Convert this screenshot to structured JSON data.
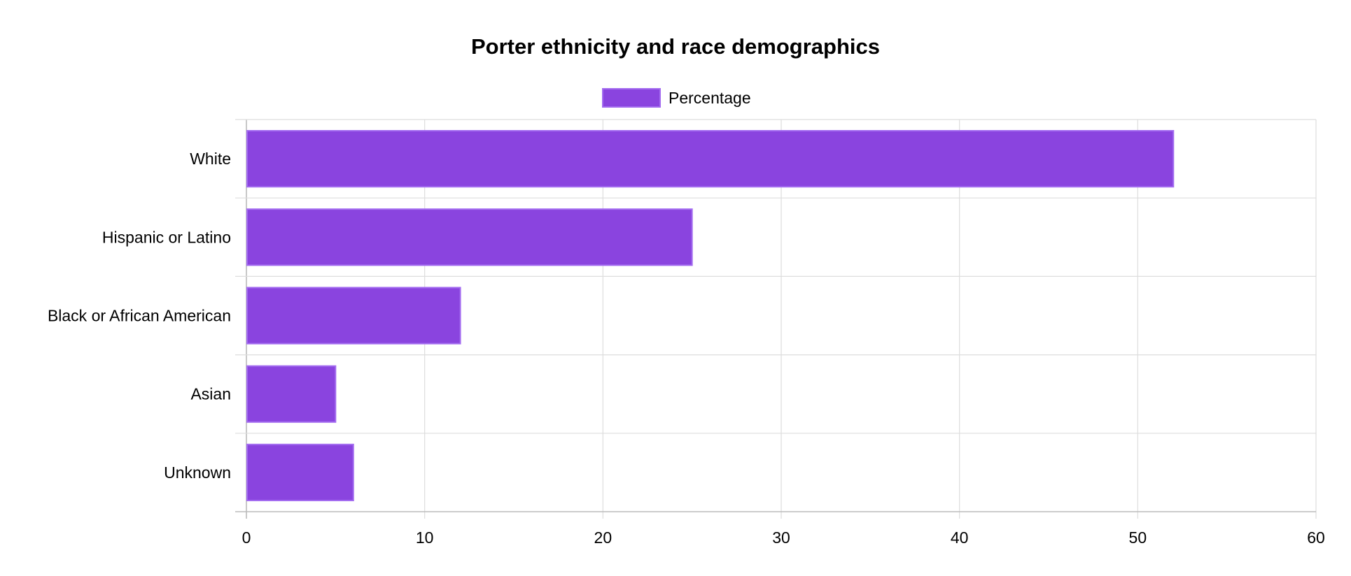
{
  "chart_data": {
    "type": "bar",
    "orientation": "horizontal",
    "title": "Porter ethnicity and race demographics",
    "categories": [
      "White",
      "Hispanic or Latino",
      "Black or African American",
      "Asian",
      "Unknown"
    ],
    "series": [
      {
        "name": "Percentage",
        "values": [
          52,
          25,
          12,
          5,
          6
        ]
      }
    ],
    "xlim": [
      0,
      60
    ],
    "xticks": [
      0,
      10,
      20,
      30,
      40,
      50,
      60
    ],
    "grid": true,
    "legend_position": "top",
    "colors": {
      "bar_fill": "#8a44df",
      "bar_border": "#a36cf0"
    }
  }
}
